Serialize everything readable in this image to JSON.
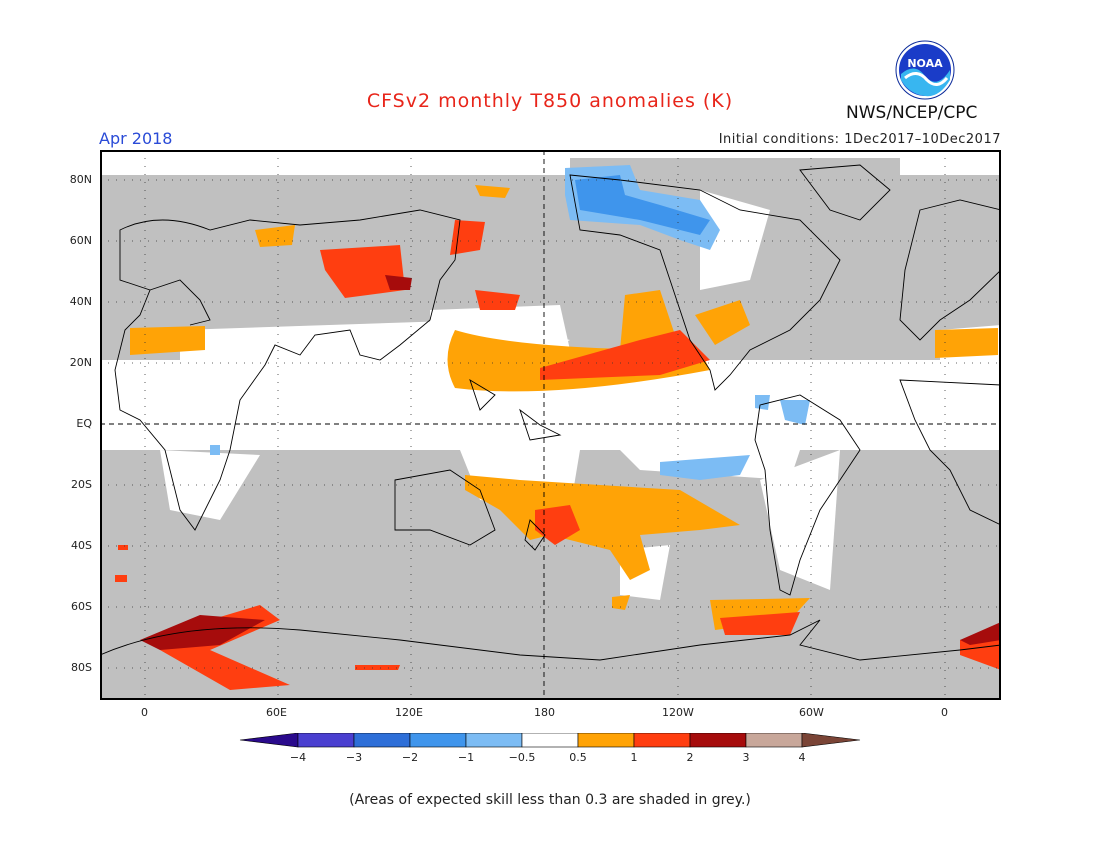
{
  "header": {
    "title": "CFSv2 monthly T850 anomalies (K)",
    "month": "Apr 2018",
    "initial_conditions": "Initial conditions: 1Dec2017–10Dec2017",
    "agency": "NWS/NCEP/CPC",
    "logo_text": "NOAA"
  },
  "axes": {
    "lat_labels": [
      "80N",
      "60N",
      "40N",
      "20N",
      "EQ",
      "20S",
      "40S",
      "60S",
      "80S"
    ],
    "lon_labels": [
      "0",
      "60E",
      "120E",
      "180",
      "120W",
      "60W",
      "0"
    ]
  },
  "colorbar": {
    "labels": [
      "−4",
      "−3",
      "−2",
      "−1",
      "−0.5",
      "0.5",
      "1",
      "2",
      "3",
      "4"
    ],
    "colors": [
      "#2a0a8c",
      "#4a3fd0",
      "#2e6fd8",
      "#3f95ec",
      "#7cbcf4",
      "#ffffff",
      "#ffa306",
      "#ff3e10",
      "#a60c0c",
      "#c8a79a",
      "#7a4436"
    ]
  },
  "colors": {
    "land_skill": "#c0c0c0",
    "warm_05": "#ffa306",
    "warm_1": "#ff3e10",
    "warm_2": "#a60c0c",
    "cool_05": "#7cbcf4",
    "cool_1": "#3f95ec",
    "cool_2": "#2e6fd8",
    "title": "#e8251a",
    "month": "#2a4bd7"
  },
  "footnote": "(Areas of expected skill less than 0.3 are shaded in grey.)"
}
